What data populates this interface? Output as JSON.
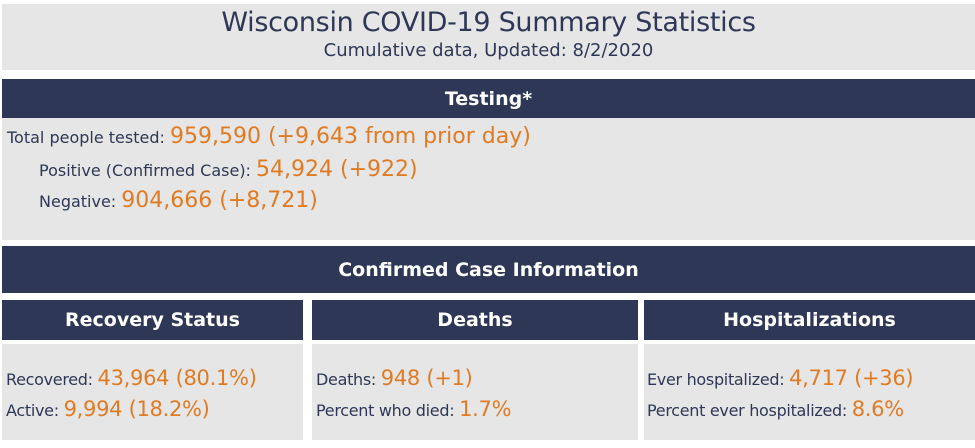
{
  "header": {
    "title": "Wisconsin COVID-19 Summary Statistics",
    "subtitle": "Cumulative data, Updated: 8/2/2020"
  },
  "testing": {
    "heading": "Testing*",
    "total_label": "Total people tested: ",
    "total_value": "959,590 (+9,643 from prior day)",
    "positive_label": "Positive (Confirmed Case): ",
    "positive_value": "54,924 (+922)",
    "negative_label": "Negative: ",
    "negative_value": "904,666 (+8,721)"
  },
  "confirmed": {
    "heading": "Confirmed Case Information",
    "recovery": {
      "heading": "Recovery Status",
      "recovered_label": "Recovered: ",
      "recovered_value": "43,964 (80.1%)",
      "active_label": "Active: ",
      "active_value": "9,994 (18.2%)"
    },
    "deaths": {
      "heading": "Deaths",
      "deaths_label": "Deaths: ",
      "deaths_value": "948 (+1)",
      "percent_label": "Percent who died: ",
      "percent_value": "1.7%"
    },
    "hosp": {
      "heading": "Hospitalizations",
      "ever_label": "Ever hospitalized: ",
      "ever_value": "4,717 (+36)",
      "percent_label": "Percent ever hospitalized: ",
      "percent_value": "8.6%"
    }
  },
  "colors": {
    "navy": "#2e3856",
    "orange": "#e07b24",
    "panel": "#e6e6e6"
  }
}
